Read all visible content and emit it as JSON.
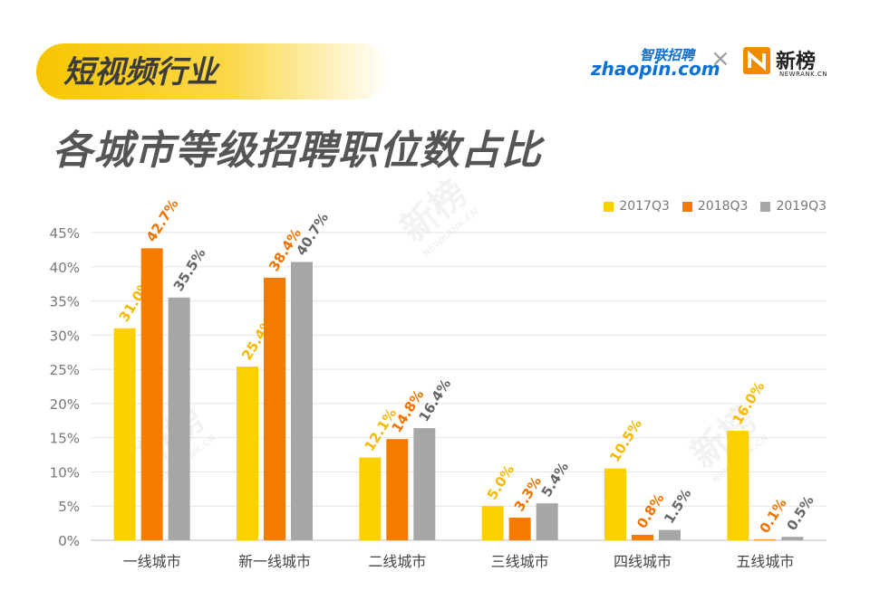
{
  "header": {
    "tag": "短视频行业",
    "title": "各城市等级招聘职位数占比"
  },
  "logos": {
    "zhaopin_top": "智联招聘",
    "zhaopin_main": "zhaopin.com",
    "separator": "×",
    "newrank_name": "新榜",
    "newrank_sub": "NEWRANK.CN"
  },
  "watermark": {
    "name": "新榜",
    "sub": "NEWRANK.CN"
  },
  "colors": {
    "s2017": "#fbcf00",
    "s2018": "#f47b00",
    "s2019": "#a6a6a6",
    "tag_bg": "#f7c500"
  },
  "chart_data": {
    "type": "bar",
    "categories": [
      "一线城市",
      "新一线城市",
      "二线城市",
      "三线城市",
      "四线城市",
      "五线城市"
    ],
    "series": [
      {
        "name": "2017Q3",
        "values": [
          31.0,
          25.4,
          12.1,
          5.0,
          10.5,
          16.0
        ],
        "labels": [
          "31.0%",
          "25.4%",
          "12.1%",
          "5.0%",
          "10.5%",
          "16.0%"
        ]
      },
      {
        "name": "2018Q3",
        "values": [
          42.7,
          38.4,
          14.8,
          3.3,
          0.8,
          0.1
        ],
        "labels": [
          "42.7%",
          "38.4%",
          "14.8%",
          "3.3%",
          "0.8%",
          "0.1%"
        ]
      },
      {
        "name": "2019Q3",
        "values": [
          35.5,
          40.7,
          16.4,
          5.4,
          1.5,
          0.5
        ],
        "labels": [
          "35.5%",
          "40.7%",
          "16.4%",
          "5.4%",
          "1.5%",
          "0.5%"
        ]
      }
    ],
    "ylim": [
      0,
      45
    ],
    "yticks": [
      "0%",
      "5%",
      "10%",
      "15%",
      "20%",
      "25%",
      "30%",
      "35%",
      "40%",
      "45%"
    ],
    "grid": true,
    "legend_position": "top-right"
  }
}
